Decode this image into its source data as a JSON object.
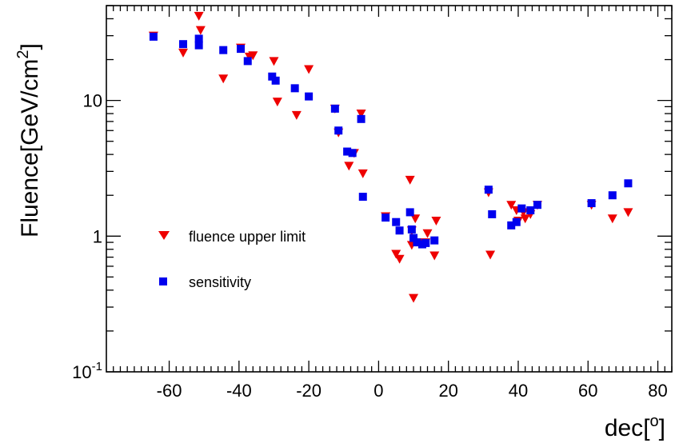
{
  "chart_data": {
    "type": "scatter",
    "xlabel": "dec",
    "xlabel_superscript": "o",
    "ylabel": "Fluence[GeV/cm",
    "ylabel_superscript": "2",
    "ylabel_suffix": "]",
    "xlim": [
      -78,
      84
    ],
    "ylim": [
      0.1,
      50
    ],
    "y_scale": "log",
    "grid": false,
    "legend_position": "center-left",
    "x_ticks": [
      -60,
      -40,
      -20,
      0,
      20,
      40,
      60,
      80
    ],
    "x_tick_labels": [
      "-60",
      "-40",
      "-20",
      "0",
      "20",
      "40",
      "60",
      "80"
    ],
    "y_tick_labels": [
      {
        "value": 10,
        "base": "10",
        "exp": ""
      },
      {
        "value": 1,
        "base": "1",
        "exp": ""
      },
      {
        "value": 0.1,
        "base": "10",
        "exp": "-1"
      }
    ],
    "series": [
      {
        "name": "fluence upper limit",
        "marker": "triangle-down",
        "color": "#ee0000",
        "points": [
          [
            -64.5,
            30
          ],
          [
            -56,
            22.5
          ],
          [
            -51.5,
            42
          ],
          [
            -51,
            33
          ],
          [
            -44.5,
            14.5
          ],
          [
            -39.5,
            24.5
          ],
          [
            -37,
            21
          ],
          [
            -36,
            21.5
          ],
          [
            -30,
            19.5
          ],
          [
            -29,
            9.8
          ],
          [
            -23.5,
            7.8
          ],
          [
            -20,
            17
          ],
          [
            -12.5,
            8.7
          ],
          [
            -11.5,
            5.8
          ],
          [
            -8.5,
            3.3
          ],
          [
            -7,
            4.1
          ],
          [
            -5,
            8
          ],
          [
            -4.5,
            2.9
          ],
          [
            2,
            1.4
          ],
          [
            5,
            0.74
          ],
          [
            6,
            0.68
          ],
          [
            9,
            2.6
          ],
          [
            9.5,
            1.1
          ],
          [
            9.5,
            0.86
          ],
          [
            10,
            0.35
          ],
          [
            10.5,
            1.35
          ],
          [
            12.5,
            0.9
          ],
          [
            13.5,
            0.9
          ],
          [
            14,
            1.05
          ],
          [
            16,
            0.72
          ],
          [
            16.5,
            1.3
          ],
          [
            31.5,
            2.1
          ],
          [
            32,
            0.73
          ],
          [
            38,
            1.7
          ],
          [
            39.5,
            1.55
          ],
          [
            40,
            1.3
          ],
          [
            41.5,
            1.5
          ],
          [
            42,
            1.35
          ],
          [
            43.5,
            1.45
          ],
          [
            45.5,
            1.7
          ],
          [
            61,
            1.7
          ],
          [
            67,
            1.35
          ],
          [
            71.5,
            1.5
          ]
        ]
      },
      {
        "name": "sensitivity",
        "marker": "square",
        "color": "#0000ee",
        "points": [
          [
            -64.5,
            29.5
          ],
          [
            -56,
            26
          ],
          [
            -51.5,
            28.5
          ],
          [
            -51.5,
            25.5
          ],
          [
            -44.5,
            23.5
          ],
          [
            -39.5,
            24
          ],
          [
            -37.5,
            19.5
          ],
          [
            -30.5,
            15
          ],
          [
            -29.5,
            14
          ],
          [
            -24,
            12.3
          ],
          [
            -20,
            10.7
          ],
          [
            -12.5,
            8.7
          ],
          [
            -11.5,
            6
          ],
          [
            -9,
            4.2
          ],
          [
            -7.5,
            4.1
          ],
          [
            -5,
            7.3
          ],
          [
            -4.5,
            1.95
          ],
          [
            2,
            1.37
          ],
          [
            5,
            1.27
          ],
          [
            6,
            1.1
          ],
          [
            9,
            1.5
          ],
          [
            9.5,
            1.12
          ],
          [
            10,
            0.97
          ],
          [
            11,
            0.9
          ],
          [
            12.5,
            0.87
          ],
          [
            13.5,
            0.89
          ],
          [
            16,
            0.93
          ],
          [
            31.5,
            2.2
          ],
          [
            32.5,
            1.45
          ],
          [
            38,
            1.2
          ],
          [
            39.5,
            1.27
          ],
          [
            41,
            1.6
          ],
          [
            43.5,
            1.55
          ],
          [
            45.5,
            1.7
          ],
          [
            61,
            1.75
          ],
          [
            67,
            2.0
          ],
          [
            71.5,
            2.45
          ]
        ]
      }
    ]
  }
}
